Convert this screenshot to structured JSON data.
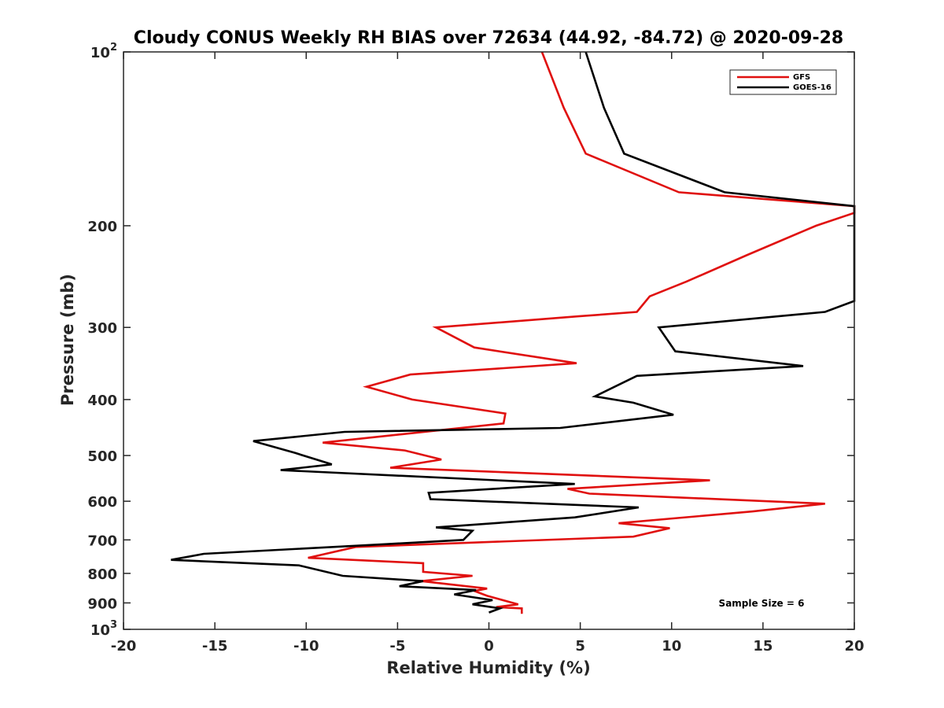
{
  "chart_data": {
    "type": "line",
    "title": "Cloudy CONUS Weekly RH BIAS over 72634 (44.92, -84.72) @ 2020-09-28",
    "xlabel": "Relative Humidity (%)",
    "ylabel": "Pressure (mb)",
    "xlim": [
      -20,
      20
    ],
    "ylim": [
      100,
      1000
    ],
    "y_scale": "log",
    "y_reversed": true,
    "grid": false,
    "legend_position": "top-right",
    "x_ticks": [
      -20,
      -15,
      -10,
      -5,
      0,
      5,
      10,
      15,
      20
    ],
    "x_tick_labels": [
      "-20",
      "-15",
      "-10",
      "-5",
      "0",
      "5",
      "10",
      "15",
      "20"
    ],
    "y_ticks": [
      100,
      200,
      300,
      400,
      500,
      600,
      700,
      800,
      900,
      1000
    ],
    "y_tick_labels": [
      {
        "base": "10",
        "exp": "2"
      },
      {
        "base": "200",
        "exp": ""
      },
      {
        "base": "300",
        "exp": ""
      },
      {
        "base": "400",
        "exp": ""
      },
      {
        "base": "500",
        "exp": ""
      },
      {
        "base": "600",
        "exp": ""
      },
      {
        "base": "700",
        "exp": ""
      },
      {
        "base": "800",
        "exp": ""
      },
      {
        "base": "900",
        "exp": ""
      },
      {
        "base": "10",
        "exp": "3"
      }
    ],
    "annotation": "Sample Size = 6",
    "series": [
      {
        "name": "GFS",
        "color": "#e0100f",
        "points": [
          [
            2.9,
            100
          ],
          [
            4.1,
            125
          ],
          [
            5.3,
            150
          ],
          [
            10.4,
            175
          ],
          [
            20.0,
            185
          ],
          [
            20.0,
            190
          ],
          [
            17.9,
            200
          ],
          [
            14.1,
            225
          ],
          [
            10.8,
            250
          ],
          [
            8.8,
            265
          ],
          [
            8.1,
            282
          ],
          [
            4.9,
            287
          ],
          [
            -2.9,
            300
          ],
          [
            -0.8,
            325
          ],
          [
            4.8,
            346
          ],
          [
            -4.3,
            362
          ],
          [
            -6.7,
            380
          ],
          [
            -4.2,
            400
          ],
          [
            0.9,
            423
          ],
          [
            0.8,
            440
          ],
          [
            -9.1,
            475
          ],
          [
            -4.6,
            490
          ],
          [
            -2.6,
            508
          ],
          [
            -5.4,
            525
          ],
          [
            12.1,
            552
          ],
          [
            4.3,
            571
          ],
          [
            5.5,
            582
          ],
          [
            18.4,
            606
          ],
          [
            14.4,
            625
          ],
          [
            7.1,
            655
          ],
          [
            9.9,
            668
          ],
          [
            7.9,
            691
          ],
          [
            -7.3,
            720
          ],
          [
            -9.9,
            752
          ],
          [
            -3.6,
            768
          ],
          [
            -3.6,
            795
          ],
          [
            -0.9,
            808
          ],
          [
            -3.7,
            825
          ],
          [
            -0.1,
            850
          ],
          [
            -0.8,
            858
          ],
          [
            -0.1,
            875
          ],
          [
            1.6,
            905
          ],
          [
            0.4,
            915
          ],
          [
            1.8,
            920
          ],
          [
            1.8,
            940
          ]
        ]
      },
      {
        "name": "GOES-16",
        "color": "#000000",
        "points": [
          [
            5.3,
            100
          ],
          [
            6.3,
            125
          ],
          [
            7.4,
            150
          ],
          [
            12.9,
            175
          ],
          [
            20.0,
            185
          ],
          [
            20.0,
            270
          ],
          [
            18.4,
            282
          ],
          [
            9.3,
            300
          ],
          [
            10.2,
            330
          ],
          [
            17.2,
            350
          ],
          [
            8.1,
            364
          ],
          [
            5.8,
            395
          ],
          [
            7.9,
            405
          ],
          [
            10.1,
            425
          ],
          [
            3.9,
            448
          ],
          [
            -7.9,
            455
          ],
          [
            -12.9,
            472
          ],
          [
            -10.6,
            495
          ],
          [
            -8.6,
            518
          ],
          [
            -11.4,
            530
          ],
          [
            4.7,
            560
          ],
          [
            -3.3,
            580
          ],
          [
            -3.2,
            595
          ],
          [
            8.2,
            615
          ],
          [
            4.7,
            640
          ],
          [
            -2.9,
            666
          ],
          [
            -0.9,
            675
          ],
          [
            -1.4,
            700
          ],
          [
            -5.6,
            712
          ],
          [
            -15.6,
            740
          ],
          [
            -17.4,
            758
          ],
          [
            -10.4,
            775
          ],
          [
            -8.0,
            808
          ],
          [
            -3.6,
            825
          ],
          [
            -4.9,
            842
          ],
          [
            -0.7,
            855
          ],
          [
            -1.9,
            870
          ],
          [
            0.2,
            890
          ],
          [
            -0.9,
            905
          ],
          [
            0.6,
            920
          ],
          [
            0.0,
            935
          ]
        ]
      }
    ]
  }
}
